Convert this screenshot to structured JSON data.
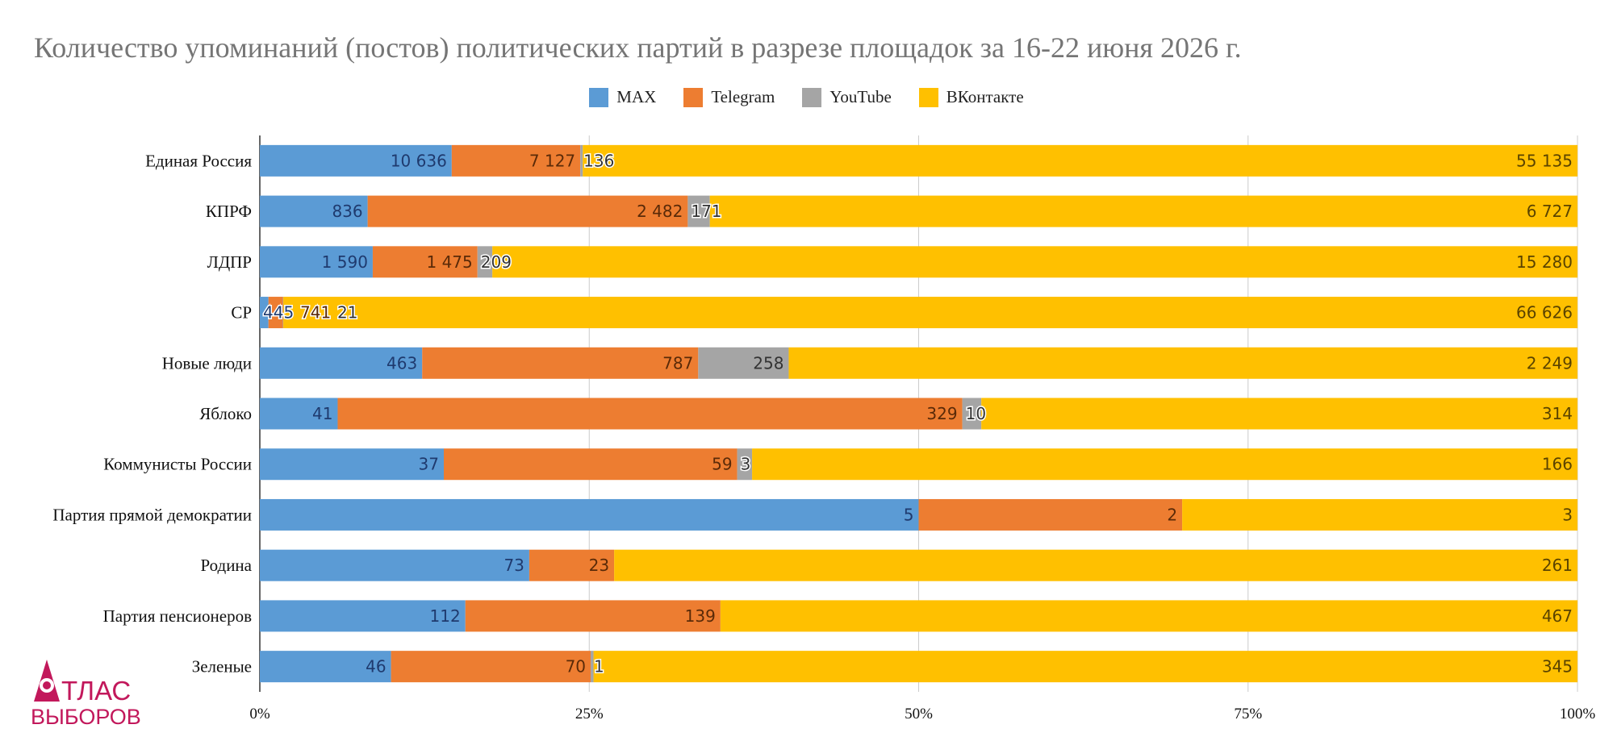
{
  "title": "Количество упоминаний (постов) политических партий в разрезе площадок за 16-22 июня 2026 г.",
  "logo": {
    "line1": "ТЛАС",
    "line2": "ВЫБОРОВ",
    "accent": "#c2185b"
  },
  "chart_data": {
    "type": "bar",
    "orientation": "horizontal",
    "stacked": "percent",
    "categories": [
      "Единая Россия",
      "КПРФ",
      "ЛДПР",
      "СР",
      "Новые люди",
      "Яблоко",
      "Коммунисты России",
      "Партия прямой демократии",
      "Родина",
      "Партия пенсионеров",
      "Зеленые"
    ],
    "series": [
      {
        "name": "MAX",
        "color": "#5b9bd5",
        "label_color": "#1f3a6e",
        "values": [
          10636,
          836,
          1590,
          445,
          463,
          41,
          37,
          5,
          73,
          112,
          46
        ],
        "labels": [
          "10 636",
          "836",
          "1 590",
          "445",
          "463",
          "41",
          "37",
          "5",
          "73",
          "112",
          "46"
        ]
      },
      {
        "name": "Telegram",
        "color": "#ed7d31",
        "label_color": "#5a2a08",
        "values": [
          7127,
          2482,
          1475,
          741,
          787,
          329,
          59,
          2,
          23,
          139,
          70
        ],
        "labels": [
          "7 127",
          "2 482",
          "1 475",
          "741",
          "787",
          "329",
          "59",
          "2",
          "23",
          "139",
          "70"
        ]
      },
      {
        "name": "YouTube",
        "color": "#a5a5a5",
        "label_color": "#333333",
        "values": [
          136,
          171,
          209,
          21,
          258,
          10,
          3,
          0,
          0,
          0,
          1
        ],
        "labels": [
          "136",
          "171",
          "209",
          "21",
          "258",
          "10",
          "3",
          "",
          "",
          "",
          "1"
        ]
      },
      {
        "name": "ВКонтакте",
        "color": "#ffc000",
        "label_color": "#5a4300",
        "values": [
          55135,
          6727,
          15280,
          66626,
          2249,
          314,
          166,
          3,
          261,
          467,
          345
        ],
        "labels": [
          "55 135",
          "6 727",
          "15 280",
          "66 626",
          "2 249",
          "314",
          "166",
          "3",
          "261",
          "467",
          "345"
        ]
      }
    ],
    "x_ticks": [
      "0%",
      "25%",
      "50%",
      "75%",
      "100%"
    ],
    "xlim": [
      0,
      100
    ],
    "grid": true,
    "legend": "top-center"
  }
}
